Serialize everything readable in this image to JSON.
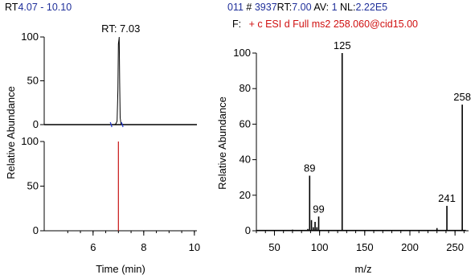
{
  "header_left": {
    "prefix": "RT",
    "range": "4.07 - 10.10"
  },
  "header_right": {
    "scan_index": "011",
    "hash": "#",
    "scan_number": "3937",
    "rt_label": "RT:",
    "rt_value": "7.00",
    "av_label": "AV:",
    "av_value": "1",
    "nl_label": "NL:",
    "nl_value": "2.22E5",
    "filter_label": "F:",
    "filter_value": "+ c ESI d Full ms2 258.060@cid15.00"
  },
  "colors": {
    "blue": "#1f2f9a",
    "red": "#d01010",
    "trace": "#000000",
    "marker": "#2a3ed0",
    "bar_red": "#c81414"
  },
  "chart_data": [
    {
      "id": "chromatogram-top",
      "type": "line",
      "annotation": "RT: 7.03",
      "ylabel": "Relative Abundance",
      "xlim": [
        4.07,
        10.1
      ],
      "ylim": [
        0,
        100
      ],
      "yticks": [
        0,
        50,
        100
      ],
      "series": [
        {
          "x": [
            4.07,
            6.7,
            6.85,
            6.9,
            6.95,
            6.98,
            7.0,
            7.02,
            7.03,
            7.05,
            7.07,
            7.1,
            7.2,
            10.1
          ],
          "y": [
            0,
            0,
            0,
            1,
            4,
            40,
            92,
            97,
            100,
            48,
            8,
            1,
            0,
            0
          ]
        }
      ]
    },
    {
      "id": "chromatogram-bottom",
      "type": "line",
      "xlabel": "Time (min)",
      "xlim": [
        4.07,
        10.1
      ],
      "ylim": [
        0,
        100
      ],
      "yticks": [
        0,
        50,
        100
      ],
      "xticks": [
        6,
        8,
        10
      ],
      "series": [
        {
          "x": [
            7.0,
            7.0
          ],
          "y": [
            0,
            100
          ]
        }
      ]
    },
    {
      "id": "mass-spectrum",
      "type": "bar",
      "ylabel": "Relative Abundance",
      "xlabel": "m/z",
      "xlim": [
        30,
        265
      ],
      "ylim": [
        0,
        100
      ],
      "xticks": [
        50,
        100,
        150,
        200,
        250
      ],
      "yticks": [
        0,
        20,
        40,
        60,
        80,
        100
      ],
      "peaks": [
        {
          "mz": 70,
          "value": 0.6
        },
        {
          "mz": 87,
          "value": 1.0
        },
        {
          "mz": 89,
          "value": 31,
          "label": "89"
        },
        {
          "mz": 91,
          "value": 6
        },
        {
          "mz": 93,
          "value": 2
        },
        {
          "mz": 95,
          "value": 5
        },
        {
          "mz": 97,
          "value": 2
        },
        {
          "mz": 99,
          "value": 8,
          "label": "99"
        },
        {
          "mz": 125,
          "value": 100,
          "label": "125"
        },
        {
          "mz": 230,
          "value": 1.5
        },
        {
          "mz": 241,
          "value": 14,
          "label": "241"
        },
        {
          "mz": 258,
          "value": 71,
          "label": "258"
        }
      ]
    }
  ]
}
